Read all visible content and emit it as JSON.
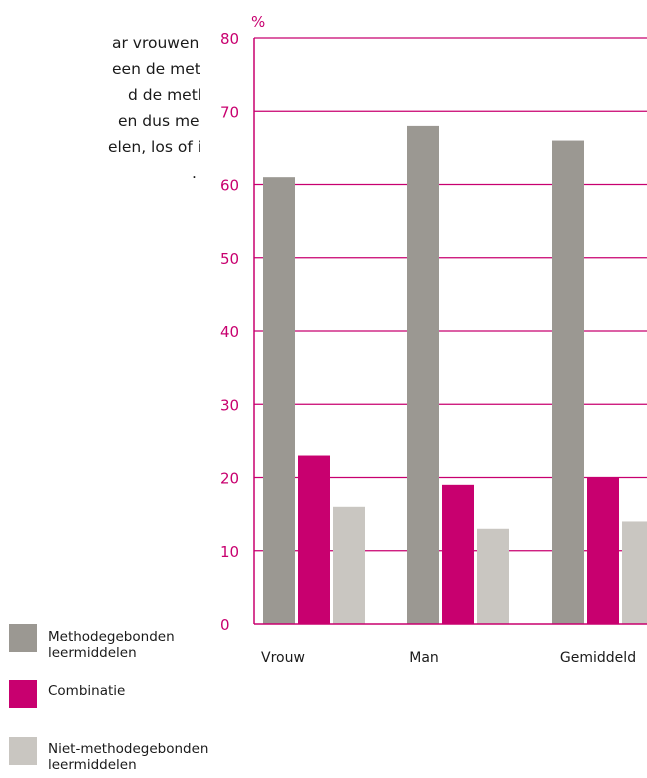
{
  "body_text": [
    "ar vrouwen",
    "een de methoden,",
    "d de methode",
    "en dus meer niet-",
    "elen, los of in",
    "."
  ],
  "colors": {
    "accent": "#c8006f",
    "methodegebonden": "#9b9892",
    "combinatie": "#c8006f",
    "niet_methodegebonden": "#c9c6c1"
  },
  "legend": [
    {
      "label": "Methodegebonden leermiddelen",
      "color": "#9b9892"
    },
    {
      "label": "Combinatie",
      "color": "#c8006f"
    },
    {
      "label": "Niet-methodegebonden leermiddelen",
      "color": "#c9c6c1"
    }
  ],
  "chart_data": {
    "type": "bar",
    "title": "",
    "xlabel": "",
    "ylabel": "%",
    "ylim": [
      0,
      80
    ],
    "yticks": [
      0,
      10,
      20,
      30,
      40,
      50,
      60,
      70,
      80
    ],
    "grid": true,
    "legend_position": "bottom-left",
    "categories": [
      "Vrouw",
      "Man",
      "Gemiddeld"
    ],
    "series": [
      {
        "name": "Methodegebonden leermiddelen",
        "values": [
          61,
          68,
          66
        ]
      },
      {
        "name": "Combinatie",
        "values": [
          23,
          19,
          20
        ]
      },
      {
        "name": "Niet-methodegebonden leermiddelen",
        "values": [
          16,
          13,
          14
        ]
      }
    ]
  }
}
